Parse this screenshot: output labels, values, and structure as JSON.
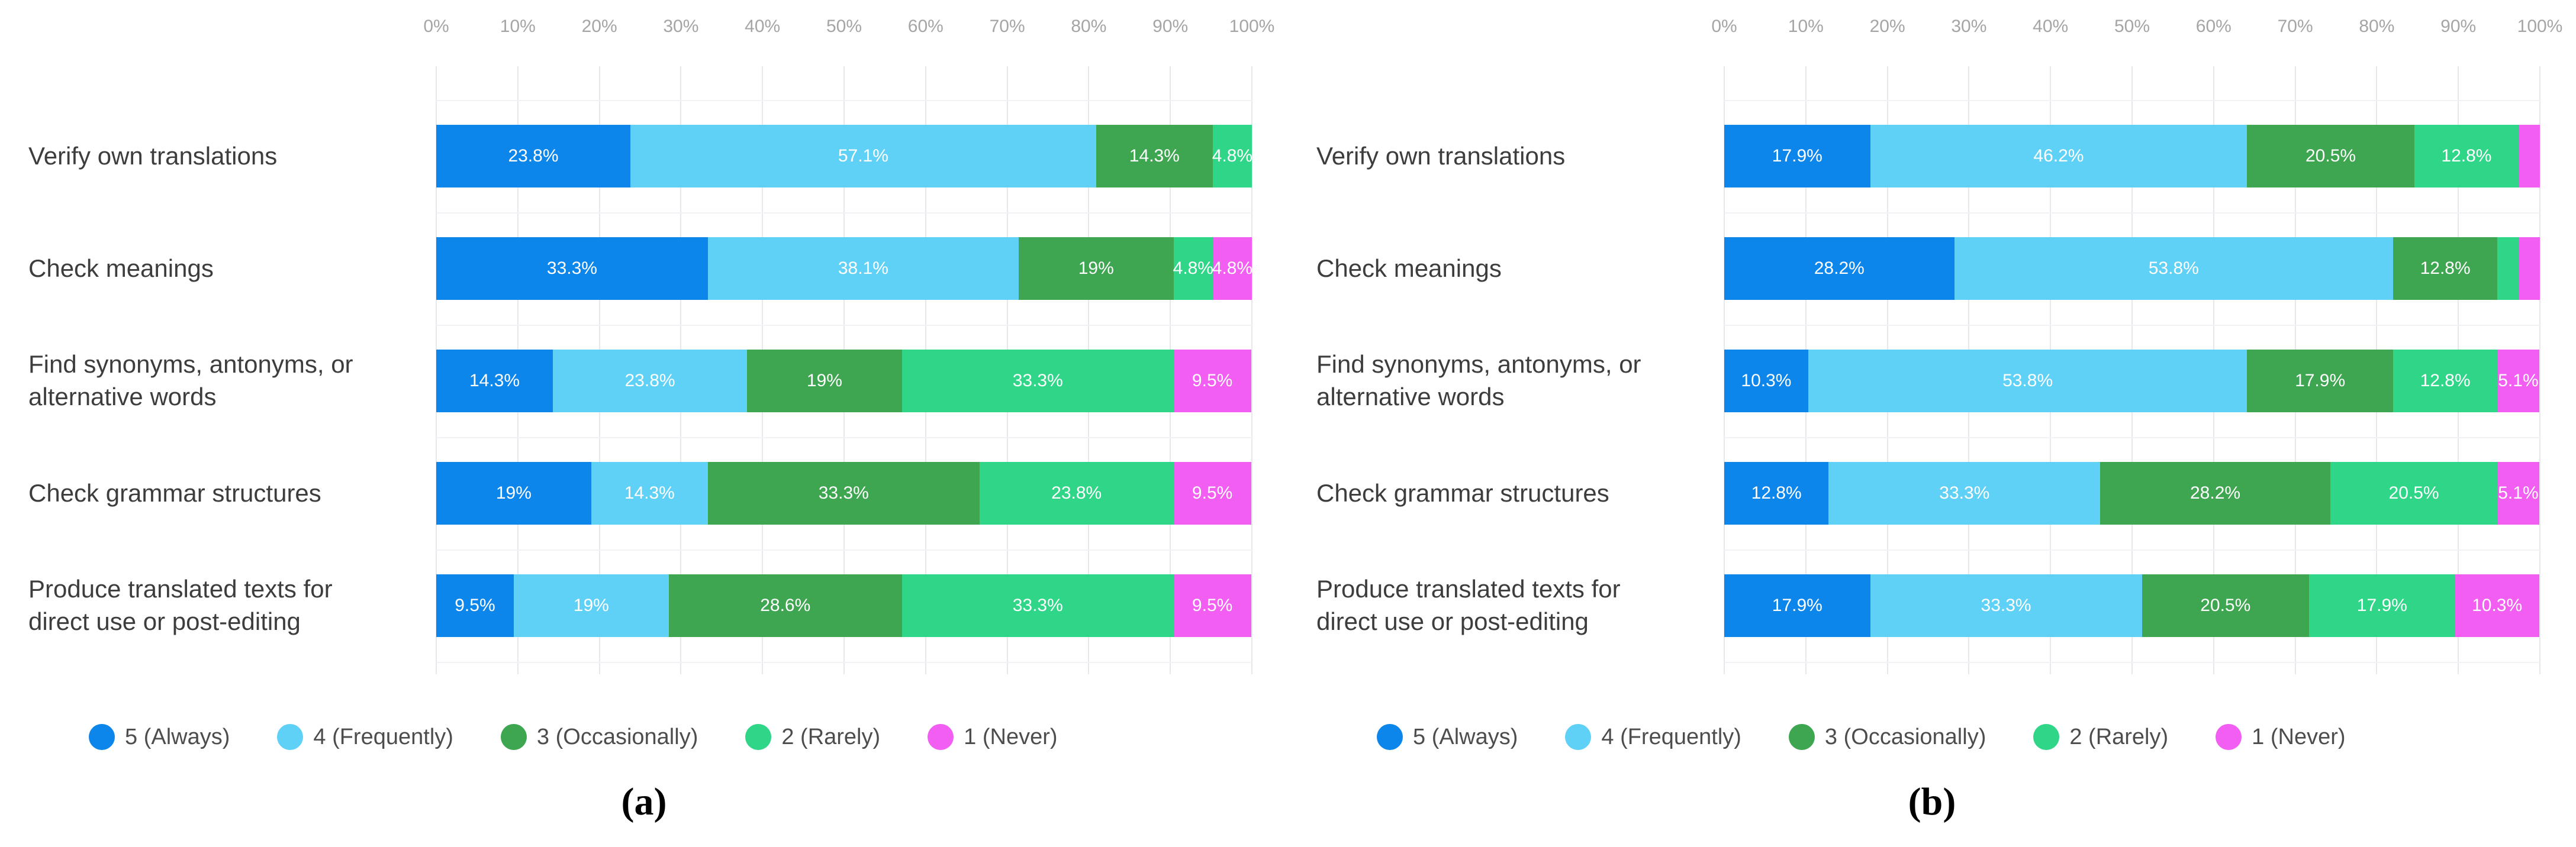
{
  "figure": {
    "captions": {
      "a": "(a)",
      "b": "(b)"
    }
  },
  "chart_data": [
    {
      "panel": "a",
      "type": "bar",
      "subtype": "horizontal-stacked-100pct",
      "title": "",
      "legend_position": "bottom",
      "x_axis": {
        "position": "top",
        "range": [
          0,
          100
        ],
        "grid": true,
        "tick_labels": [
          "0%",
          "10%",
          "20%",
          "30%",
          "40%",
          "50%",
          "60%",
          "70%",
          "80%",
          "90%",
          "100%"
        ]
      },
      "categories": [
        "Verify own translations",
        "Check meanings",
        "Find synonyms, antonyms, or alternative words",
        "Check grammar structures",
        "Produce translated texts for direct use or post-editing"
      ],
      "series": [
        {
          "name": "5 (Always)",
          "color": "#0d86ec",
          "values": [
            23.8,
            33.3,
            14.3,
            19.0,
            9.5
          ],
          "labels": [
            "23.8%",
            "33.3%",
            "14.3%",
            "19%",
            "9.5%"
          ]
        },
        {
          "name": "4 (Frequently)",
          "color": "#5fd1f7",
          "values": [
            57.1,
            38.1,
            23.8,
            14.3,
            19.0
          ],
          "labels": [
            "57.1%",
            "38.1%",
            "23.8%",
            "14.3%",
            "19%"
          ]
        },
        {
          "name": "3 (Occasionally)",
          "color": "#3ea550",
          "values": [
            14.3,
            19.0,
            19.0,
            33.3,
            28.6
          ],
          "labels": [
            "14.3%",
            "19%",
            "19%",
            "33.3%",
            "28.6%"
          ]
        },
        {
          "name": "2 (Rarely)",
          "color": "#2fd687",
          "values": [
            4.8,
            4.8,
            33.3,
            23.8,
            33.3
          ],
          "labels": [
            "4.8%",
            "4.8%",
            "33.3%",
            "23.8%",
            "33.3%"
          ]
        },
        {
          "name": "1 (Never)",
          "color": "#f15ef1",
          "values": [
            0.0,
            4.8,
            9.5,
            9.5,
            9.5
          ],
          "labels": [
            "",
            "4.8%",
            "9.5%",
            "9.5%",
            "9.5%"
          ]
        }
      ]
    },
    {
      "panel": "b",
      "type": "bar",
      "subtype": "horizontal-stacked-100pct",
      "title": "",
      "legend_position": "bottom",
      "x_axis": {
        "position": "top",
        "range": [
          0,
          100
        ],
        "grid": true,
        "tick_labels": [
          "0%",
          "10%",
          "20%",
          "30%",
          "40%",
          "50%",
          "60%",
          "70%",
          "80%",
          "90%",
          "100%"
        ]
      },
      "categories": [
        "Verify own translations",
        "Check meanings",
        "Find synonyms, antonyms, or alternative words",
        "Check grammar structures",
        "Produce translated texts for direct use or post-editing"
      ],
      "series": [
        {
          "name": "5 (Always)",
          "color": "#0d86ec",
          "values": [
            17.9,
            28.2,
            10.3,
            12.8,
            17.9
          ],
          "labels": [
            "17.9%",
            "28.2%",
            "10.3%",
            "12.8%",
            "17.9%"
          ]
        },
        {
          "name": "4 (Frequently)",
          "color": "#5fd1f7",
          "values": [
            46.2,
            53.8,
            53.8,
            33.3,
            33.3
          ],
          "labels": [
            "46.2%",
            "53.8%",
            "53.8%",
            "33.3%",
            "33.3%"
          ]
        },
        {
          "name": "3 (Occasionally)",
          "color": "#3ea550",
          "values": [
            20.5,
            12.8,
            17.9,
            28.2,
            20.5
          ],
          "labels": [
            "20.5%",
            "12.8%",
            "17.9%",
            "28.2%",
            "20.5%"
          ]
        },
        {
          "name": "2 (Rarely)",
          "color": "#2fd687",
          "values": [
            12.8,
            2.6,
            12.8,
            20.5,
            17.9
          ],
          "labels": [
            "12.8%",
            "",
            "12.8%",
            "20.5%",
            "17.9%"
          ]
        },
        {
          "name": "1 (Never)",
          "color": "#f15ef1",
          "values": [
            2.6,
            2.6,
            5.1,
            5.1,
            10.3
          ],
          "labels": [
            "",
            "",
            "5.1%",
            "5.1%",
            "10.3%"
          ]
        }
      ]
    }
  ]
}
